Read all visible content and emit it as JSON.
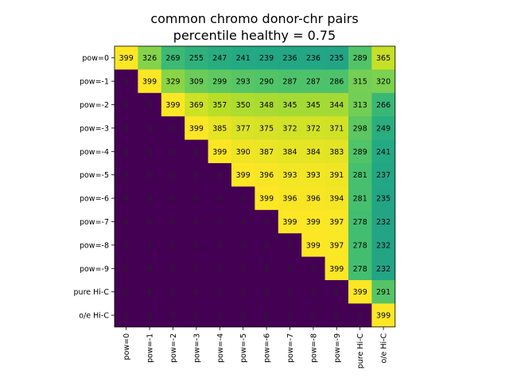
{
  "chart_data": {
    "type": "heatmap",
    "title": "common chromo donor-chr pairs",
    "subtitle": "percentile healthy = 0.75",
    "xlabel": "",
    "ylabel": "",
    "colormap": "viridis",
    "vmin": 0,
    "vmax": 399,
    "row_labels": [
      "pow=0",
      "pow=-1",
      "pow=-2",
      "pow=-3",
      "pow=-4",
      "pow=-5",
      "pow=-6",
      "pow=-7",
      "pow=-8",
      "pow=-9",
      "pure Hi-C",
      "o/e Hi-C"
    ],
    "col_labels": [
      "pow=0",
      "pow=-1",
      "pow=-2",
      "pow=-3",
      "pow=-4",
      "pow=-5",
      "pow=-6",
      "pow=-7",
      "pow=-8",
      "pow=-9",
      "pure Hi-C",
      "o/e Hi-C"
    ],
    "values": [
      [
        399,
        326,
        269,
        255,
        247,
        241,
        239,
        236,
        236,
        235,
        289,
        365
      ],
      [
        0,
        399,
        329,
        309,
        299,
        293,
        290,
        287,
        287,
        286,
        315,
        320
      ],
      [
        0,
        0,
        399,
        369,
        357,
        350,
        348,
        345,
        345,
        344,
        313,
        266
      ],
      [
        0,
        0,
        0,
        399,
        385,
        377,
        375,
        372,
        372,
        371,
        298,
        249
      ],
      [
        0,
        0,
        0,
        0,
        399,
        390,
        387,
        384,
        384,
        383,
        289,
        241
      ],
      [
        0,
        0,
        0,
        0,
        0,
        399,
        396,
        393,
        393,
        391,
        281,
        237
      ],
      [
        0,
        0,
        0,
        0,
        0,
        0,
        399,
        396,
        396,
        394,
        281,
        235
      ],
      [
        0,
        0,
        0,
        0,
        0,
        0,
        0,
        399,
        399,
        397,
        278,
        232
      ],
      [
        0,
        0,
        0,
        0,
        0,
        0,
        0,
        0,
        399,
        397,
        278,
        232
      ],
      [
        0,
        0,
        0,
        0,
        0,
        0,
        0,
        0,
        0,
        399,
        278,
        232
      ],
      [
        0,
        0,
        0,
        0,
        0,
        0,
        0,
        0,
        0,
        0,
        399,
        291
      ],
      [
        0,
        0,
        0,
        0,
        0,
        0,
        0,
        0,
        0,
        0,
        0,
        399
      ]
    ]
  }
}
